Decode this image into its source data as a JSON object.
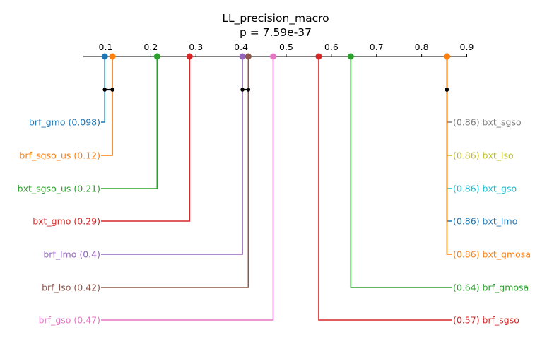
{
  "chart_data": {
    "type": "critical-difference",
    "title": "LL_precision_macro",
    "subtitle": "p = 7.59e-37",
    "axis": {
      "range": [
        0.05,
        0.9
      ],
      "ticks": [
        0.1,
        0.2,
        0.3,
        0.4,
        0.5,
        0.6,
        0.7,
        0.8,
        0.9
      ],
      "tick_labels": [
        "0.1",
        "0.2",
        "0.3",
        "0.4",
        "0.5",
        "0.6",
        "0.7",
        "0.8",
        "0.9"
      ]
    },
    "methods_left": [
      {
        "name": "brf_gmo",
        "value": 0.098,
        "label": "brf_gmo (0.098)",
        "color": "#1f77b4"
      },
      {
        "name": "brf_sgso_us",
        "value": 0.115,
        "label": "brf_sgso_us (0.12)",
        "color": "#ff7f0e"
      },
      {
        "name": "bxt_sgso_us",
        "value": 0.214,
        "label": "bxt_sgso_us (0.21)",
        "color": "#2ca02c"
      },
      {
        "name": "bxt_gmo",
        "value": 0.286,
        "label": "bxt_gmo (0.29)",
        "color": "#d62728"
      },
      {
        "name": "brf_lmo",
        "value": 0.403,
        "label": "brf_lmo (0.4)",
        "color": "#9467bd"
      },
      {
        "name": "brf_lso",
        "value": 0.416,
        "label": "brf_lso (0.42)",
        "color": "#8c564b"
      },
      {
        "name": "brf_gso",
        "value": 0.471,
        "label": "brf_gso (0.47)",
        "color": "#e377c2"
      }
    ],
    "methods_right": [
      {
        "name": "bxt_sgso",
        "value": 0.856,
        "label": "(0.86) bxt_sgso",
        "color": "#7f7f7f"
      },
      {
        "name": "bxt_lso",
        "value": 0.856,
        "label": "(0.86) bxt_lso",
        "color": "#bcbd22"
      },
      {
        "name": "bxt_gso",
        "value": 0.856,
        "label": "(0.86) bxt_gso",
        "color": "#17becf"
      },
      {
        "name": "bxt_lmo",
        "value": 0.856,
        "label": "(0.86) bxt_lmo",
        "color": "#1f77b4"
      },
      {
        "name": "bxt_gmosa",
        "value": 0.856,
        "label": "(0.86) bxt_gmosa",
        "color": "#ff7f0e"
      },
      {
        "name": "brf_gmosa",
        "value": 0.643,
        "label": "(0.64) brf_gmosa",
        "color": "#2ca02c"
      },
      {
        "name": "brf_sgso",
        "value": 0.572,
        "label": "(0.57) brf_sgso",
        "color": "#d62728"
      }
    ],
    "groups": [
      {
        "from": 0.098,
        "to": 0.115
      },
      {
        "from": 0.403,
        "to": 0.416
      },
      {
        "from": 0.856,
        "to": 0.856
      }
    ]
  }
}
